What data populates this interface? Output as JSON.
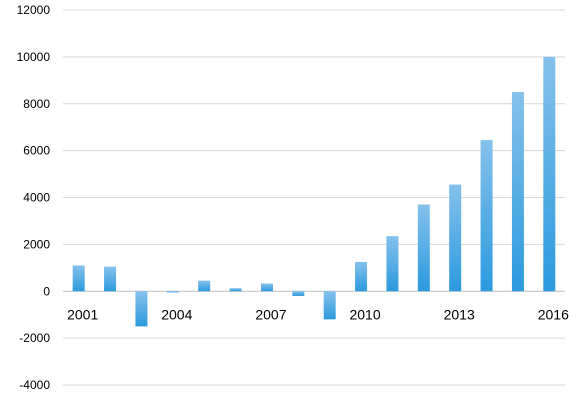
{
  "chart_data": {
    "type": "bar",
    "title": "",
    "xlabel": "",
    "ylabel": "",
    "ylim": [
      -4000,
      12000
    ],
    "yticks": [
      -4000,
      -2000,
      0,
      2000,
      4000,
      6000,
      8000,
      10000,
      12000
    ],
    "grid": true,
    "legend": "none",
    "categories": [
      "2001",
      "2002",
      "2003",
      "2004",
      "2005",
      "2006",
      "2007",
      "2008",
      "2009",
      "2010",
      "2011",
      "2012",
      "2013",
      "2014",
      "2015",
      "2016"
    ],
    "x_tick_labels": [
      "2001",
      "2004",
      "2007",
      "2010",
      "2013",
      "2016"
    ],
    "series": [
      {
        "values": [
          1100,
          1050,
          -1500,
          -50,
          450,
          130,
          330,
          -200,
          -1200,
          1250,
          2350,
          3700,
          4550,
          6450,
          8500,
          10000
        ]
      }
    ],
    "colors": {
      "bar_top": "#85c1ec",
      "bar_bottom": "#2b9ade",
      "grid": "#d9d9d9"
    }
  }
}
